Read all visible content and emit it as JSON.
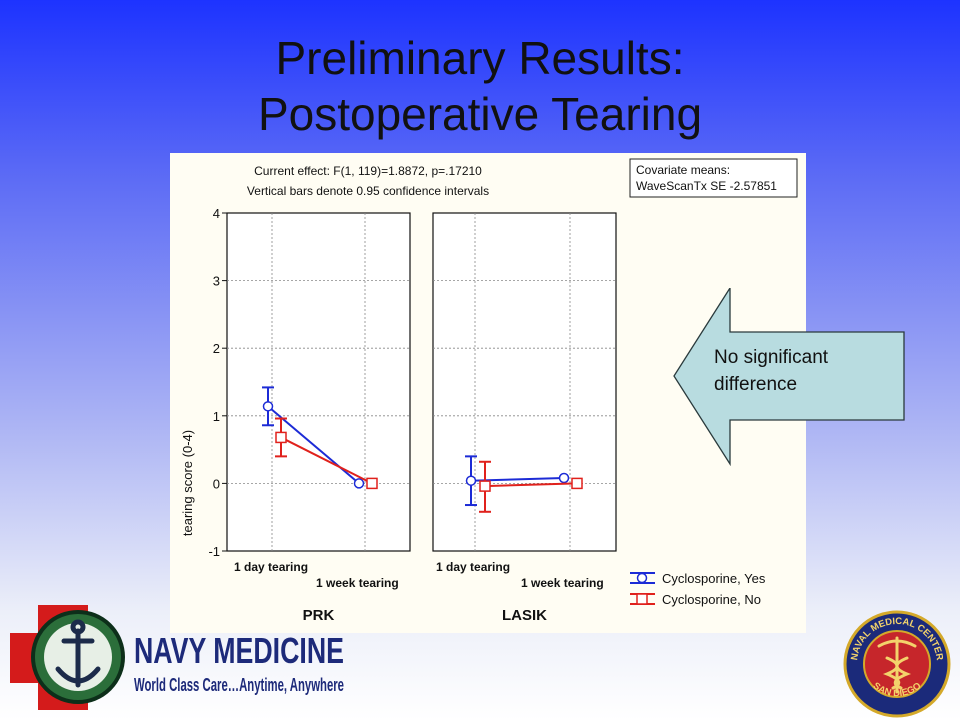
{
  "slide": {
    "title_line1": "Preliminary Results:",
    "title_line2": "Postoperative Tearing"
  },
  "callout": {
    "text_line1": "No significant",
    "text_line2": "difference"
  },
  "logos": {
    "navy_medicine": "NAVY MEDICINE",
    "navy_tagline": "World Class Care…Anytime, Anywhere",
    "seal_top": "NAVAL MEDICAL CENTER",
    "seal_bottom": "SAN DIEGO"
  },
  "colors": {
    "series_yes": "#1c2bd6",
    "series_no": "#e0211c",
    "chart_bg": "#fffdf3",
    "callout_fill": "#b8dce0"
  },
  "chart_data": {
    "type": "line",
    "header_line1": "Current effect: F(1, 119)=1.8872, p=.17210",
    "header_line2": "Vertical bars denote 0.95 confidence intervals",
    "covariate_line1": "Covariate means:",
    "covariate_line2": "WaveScanTx SE -2.57851",
    "ylabel": "tearing score (0-4)",
    "ylim": [
      -1,
      4
    ],
    "yticks": [
      "-1",
      "0",
      "1",
      "2",
      "3",
      "4"
    ],
    "categories": [
      "1 day tearing",
      "1 week tearing"
    ],
    "grid": true,
    "legend_position": "bottom-right",
    "panels": [
      {
        "name": "PRK",
        "series": [
          {
            "name": "Cyclosporine, Yes",
            "values": [
              1.14,
              0.0
            ],
            "ci_low": [
              0.86,
              0.0
            ],
            "ci_high": [
              1.42,
              0.0
            ]
          },
          {
            "name": "Cyclosporine, No",
            "values": [
              0.68,
              0.0
            ],
            "ci_low": [
              0.4,
              0.0
            ],
            "ci_high": [
              0.96,
              0.0
            ]
          }
        ]
      },
      {
        "name": "LASIK",
        "series": [
          {
            "name": "Cyclosporine, Yes",
            "values": [
              0.04,
              0.08
            ],
            "ci_low": [
              -0.32,
              0.08
            ],
            "ci_high": [
              0.4,
              0.08
            ]
          },
          {
            "name": "Cyclosporine, No",
            "values": [
              -0.04,
              0.0
            ],
            "ci_low": [
              -0.42,
              0.0
            ],
            "ci_high": [
              0.32,
              0.0
            ]
          }
        ]
      }
    ]
  }
}
